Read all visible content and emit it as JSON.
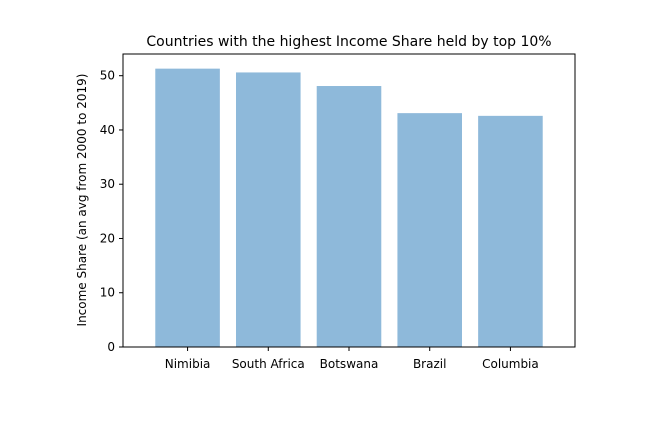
{
  "chart_data": {
    "type": "bar",
    "title": "Countries with the highest Income Share held by top 10%",
    "xlabel": "",
    "ylabel": "Income Share (an avg from 2000 to 2019)",
    "categories": [
      "Nimibia",
      "South Africa",
      "Botswana",
      "Brazil",
      "Columbia"
    ],
    "values": [
      51.3,
      50.6,
      48.1,
      43.1,
      42.6
    ],
    "ylim": [
      0,
      54
    ],
    "yticks": [
      0,
      10,
      20,
      30,
      40,
      50
    ],
    "bar_color": "#8eb9da",
    "grid": false,
    "legend": "none"
  }
}
